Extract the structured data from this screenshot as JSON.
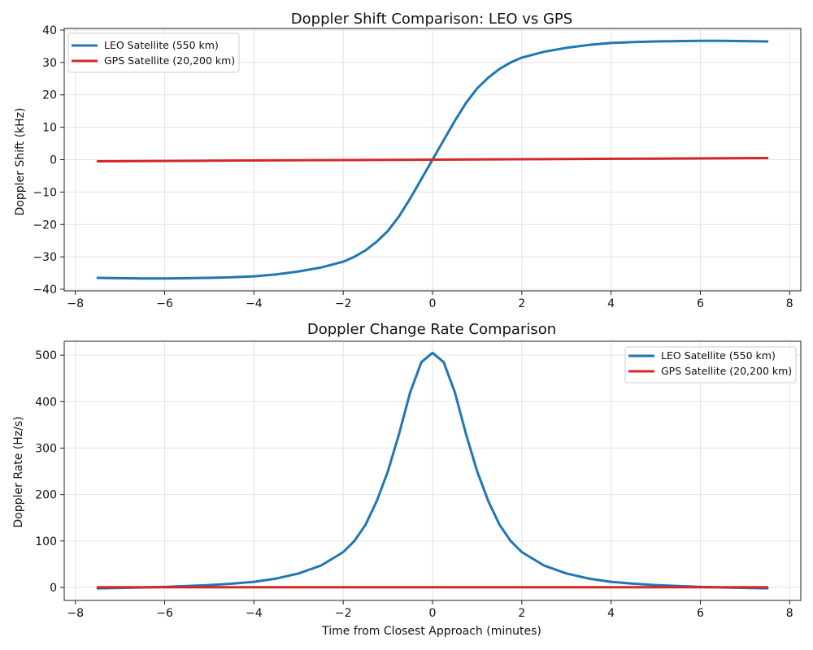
{
  "chart_data": [
    {
      "type": "line",
      "title": "Doppler Shift Comparison: LEO vs GPS",
      "xlabel": "",
      "ylabel": "Doppler Shift (kHz)",
      "xlim": [
        -8.25,
        8.25
      ],
      "ylim": [
        -40.5,
        40.5
      ],
      "xticks": [
        -8,
        -6,
        -4,
        -2,
        0,
        2,
        4,
        6,
        8
      ],
      "yticks": [
        -40,
        -30,
        -20,
        -10,
        0,
        10,
        20,
        30,
        40
      ],
      "xtick_labels": [
        "−8",
        "−6",
        "−4",
        "−2",
        "0",
        "2",
        "4",
        "6",
        "8"
      ],
      "ytick_labels": [
        "−40",
        "−30",
        "−20",
        "−10",
        "0",
        "10",
        "20",
        "30",
        "40"
      ],
      "grid": true,
      "legend_position": "top-left",
      "series": [
        {
          "name": "LEO Satellite (550 km)",
          "color": "#1f77b4",
          "x": [
            -7.5,
            -7.0,
            -6.5,
            -6.0,
            -5.5,
            -5.0,
            -4.5,
            -4.0,
            -3.5,
            -3.0,
            -2.5,
            -2.0,
            -1.75,
            -1.5,
            -1.25,
            -1.0,
            -0.75,
            -0.5,
            -0.25,
            0.0,
            0.25,
            0.5,
            0.75,
            1.0,
            1.25,
            1.5,
            1.75,
            2.0,
            2.5,
            3.0,
            3.5,
            4.0,
            4.5,
            5.0,
            5.5,
            6.0,
            6.5,
            7.0,
            7.5
          ],
          "y": [
            -36.5,
            -36.6,
            -36.7,
            -36.7,
            -36.6,
            -36.5,
            -36.3,
            -36.0,
            -35.4,
            -34.5,
            -33.3,
            -31.5,
            -30.0,
            -28.0,
            -25.3,
            -22.0,
            -17.5,
            -12.0,
            -6.0,
            0.0,
            6.0,
            12.0,
            17.5,
            22.0,
            25.3,
            28.0,
            30.0,
            31.5,
            33.3,
            34.5,
            35.4,
            36.0,
            36.3,
            36.5,
            36.6,
            36.7,
            36.7,
            36.6,
            36.5
          ]
        },
        {
          "name": "GPS Satellite (20,200 km)",
          "color": "#d62728",
          "x": [
            -7.5,
            -5.0,
            -2.5,
            0.0,
            2.5,
            5.0,
            7.5
          ],
          "y": [
            -0.5,
            -0.33,
            -0.16,
            0.0,
            0.16,
            0.33,
            0.5
          ]
        }
      ]
    },
    {
      "type": "line",
      "title": "Doppler Change Rate Comparison",
      "xlabel": "Time from Closest Approach (minutes)",
      "ylabel": "Doppler Rate (Hz/s)",
      "xlim": [
        -8.25,
        8.25
      ],
      "ylim": [
        -28,
        530
      ],
      "xticks": [
        -8,
        -6,
        -4,
        -2,
        0,
        2,
        4,
        6,
        8
      ],
      "yticks": [
        0,
        100,
        200,
        300,
        400,
        500
      ],
      "xtick_labels": [
        "−8",
        "−6",
        "−4",
        "−2",
        "0",
        "2",
        "4",
        "6",
        "8"
      ],
      "ytick_labels": [
        "0",
        "100",
        "200",
        "300",
        "400",
        "500"
      ],
      "grid": true,
      "legend_position": "top-right",
      "series": [
        {
          "name": "LEO Satellite (550 km)",
          "color": "#1f77b4",
          "x": [
            -7.5,
            -7.0,
            -6.5,
            -6.0,
            -5.5,
            -5.0,
            -4.5,
            -4.0,
            -3.5,
            -3.0,
            -2.5,
            -2.0,
            -1.75,
            -1.5,
            -1.25,
            -1.0,
            -0.75,
            -0.5,
            -0.25,
            0.0,
            0.25,
            0.5,
            0.75,
            1.0,
            1.25,
            1.5,
            1.75,
            2.0,
            2.5,
            3.0,
            3.5,
            4.0,
            4.5,
            5.0,
            5.5,
            6.0,
            6.5,
            7.0,
            7.5
          ],
          "y": [
            -2,
            -1,
            0,
            1,
            3,
            5,
            8,
            12,
            19,
            30,
            47,
            76,
            100,
            135,
            186,
            250,
            330,
            420,
            485,
            505,
            485,
            420,
            330,
            250,
            186,
            135,
            100,
            76,
            47,
            30,
            19,
            12,
            8,
            5,
            3,
            1,
            0,
            -1,
            -2
          ]
        },
        {
          "name": "GPS Satellite (20,200 km)",
          "color": "#d62728",
          "x": [
            -7.5,
            -5.0,
            -2.5,
            0.0,
            2.5,
            5.0,
            7.5
          ],
          "y": [
            0.5,
            0.5,
            0.5,
            0.5,
            0.5,
            0.5,
            0.5
          ]
        }
      ]
    }
  ]
}
